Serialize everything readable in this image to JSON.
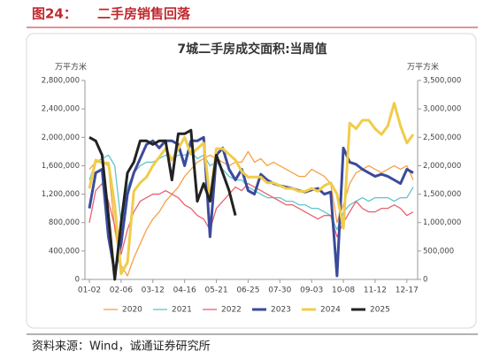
{
  "header": {
    "figure": "图24：",
    "title": "二手房销售回落"
  },
  "footer": "资料来源：Wind，诚通证券研究所",
  "chart_data": {
    "type": "line",
    "title": "7城二手房成交面积:当周值",
    "ylabel": "万平方米",
    "y2label": "万平方米",
    "categories": [
      "01-02",
      null,
      null,
      null,
      null,
      "02-06",
      null,
      null,
      null,
      null,
      "03-12",
      null,
      null,
      null,
      null,
      "04-16",
      null,
      null,
      null,
      null,
      "05-21",
      null,
      null,
      null,
      null,
      "06-25",
      null,
      null,
      null,
      null,
      "07-30",
      null,
      null,
      null,
      null,
      "09-03",
      null,
      null,
      null,
      null,
      "10-08",
      null,
      null,
      null,
      null,
      "11-12",
      null,
      null,
      null,
      null,
      "12-17",
      null
    ],
    "ylim": [
      0,
      2800000
    ],
    "yticks": [
      0,
      {
        "value": 400000,
        "label": "400,000"
      },
      {
        "value": 800000,
        "label": "800,000"
      },
      {
        "value": 1200000,
        "label": "1,200,000"
      },
      {
        "value": 1600000,
        "label": "1,600,000"
      },
      {
        "value": 2000000,
        "label": "2,000,000"
      },
      {
        "value": 2400000,
        "label": "2,400,000"
      },
      {
        "value": 2800000,
        "label": "2,800,000"
      }
    ],
    "y2lim": [
      0,
      3500000
    ],
    "y2ticks": [
      0,
      {
        "value": 500000,
        "label": "500,000"
      },
      {
        "value": 1000000,
        "label": "1,000,000"
      },
      {
        "value": 1500000,
        "label": "1,500,000"
      },
      {
        "value": 2000000,
        "label": "2,000,000"
      },
      {
        "value": 2500000,
        "label": "2,500,000"
      },
      {
        "value": 3000000,
        "label": "3,000,000"
      },
      {
        "value": 3500000,
        "label": "3,500,000"
      }
    ],
    "legend": "bottom",
    "series": [
      {
        "name": "2020",
        "color": "#f4a04a",
        "width": 1.3,
        "values": [
          1550000,
          1650000,
          1650000,
          1600000,
          700000,
          200000,
          50000,
          300000,
          500000,
          700000,
          850000,
          950000,
          1100000,
          1200000,
          1300000,
          1450000,
          1550000,
          1650000,
          1700000,
          1750000,
          1700000,
          1650000,
          1600000,
          1650000,
          1650000,
          1800000,
          1650000,
          1700000,
          1600000,
          1650000,
          1600000,
          1550000,
          1500000,
          1450000,
          1450000,
          1550000,
          1500000,
          1450000,
          1350000,
          800000,
          1050000,
          1350000,
          1500000,
          1550000,
          1600000,
          1550000,
          1500000,
          1550000,
          1600000,
          1550000,
          1600000,
          1400000
        ]
      },
      {
        "name": "2021",
        "color": "#5cc6cc",
        "width": 1.3,
        "values": [
          1400000,
          1650000,
          1700000,
          1750000,
          1600000,
          800000,
          1300000,
          1500000,
          1600000,
          1650000,
          1650000,
          1700000,
          1750000,
          1700000,
          1750000,
          1750000,
          1800000,
          1700000,
          1750000,
          1600000,
          1650000,
          1550000,
          1450000,
          1400000,
          1400000,
          1300000,
          1250000,
          1200000,
          1150000,
          1150000,
          1150000,
          1100000,
          1100000,
          1050000,
          1050000,
          1000000,
          1000000,
          950000,
          900000,
          700000,
          950000,
          1050000,
          1100000,
          1150000,
          1100000,
          1150000,
          1150000,
          1150000,
          1100000,
          1150000,
          1150000,
          1300000
        ]
      },
      {
        "name": "2022",
        "color": "#e8626e",
        "width": 1.3,
        "values": [
          800000,
          1250000,
          1350000,
          1100000,
          750000,
          350000,
          700000,
          950000,
          1100000,
          1150000,
          1200000,
          1200000,
          1250000,
          1200000,
          1150000,
          1050000,
          1000000,
          900000,
          850000,
          700000,
          1000000,
          1100000,
          1200000,
          1300000,
          1250000,
          1350000,
          1300000,
          1250000,
          1200000,
          1150000,
          1100000,
          1050000,
          1050000,
          1000000,
          950000,
          900000,
          850000,
          900000,
          900000,
          600000,
          800000,
          950000,
          1100000,
          1000000,
          950000,
          950000,
          1000000,
          1000000,
          1050000,
          1000000,
          900000,
          950000
        ]
      },
      {
        "name": "2023",
        "color": "#3b4a9a",
        "width": 3,
        "values": [
          1000000,
          1500000,
          1550000,
          600000,
          100000,
          500000,
          1200000,
          1500000,
          1700000,
          1900000,
          1950000,
          1850000,
          1950000,
          1950000,
          1900000,
          1600000,
          1950000,
          1950000,
          2000000,
          600000,
          1750000,
          1850000,
          1550000,
          1400000,
          1550000,
          1250000,
          1200000,
          1480000,
          1400000,
          1350000,
          1320000,
          1300000,
          1280000,
          1250000,
          1230000,
          1260000,
          1280000,
          1200000,
          1230000,
          50000,
          1850000,
          1650000,
          1620000,
          1550000,
          1500000,
          1450000,
          1480000,
          1450000,
          1400000,
          1350000,
          1550000,
          1500000
        ]
      },
      {
        "name": "2024",
        "color": "#f0cc4a",
        "width": 3,
        "axis": "y2",
        "values": [
          1600000,
          2100000,
          2050000,
          2050000,
          1300000,
          100000,
          300000,
          1550000,
          1700000,
          1800000,
          2000000,
          2150000,
          2300000,
          2100000,
          2300000,
          2500000,
          2200000,
          2300000,
          2400000,
          1400000,
          2300000,
          2300000,
          2200000,
          2100000,
          1900000,
          1800000,
          1800000,
          1800000,
          1700000,
          1700000,
          1650000,
          1600000,
          1600000,
          1550000,
          1550000,
          1600000,
          1550000,
          1650000,
          1700000,
          1500000,
          900000,
          2750000,
          2650000,
          2800000,
          2800000,
          2650000,
          2550000,
          2700000,
          3100000,
          2700000,
          2400000,
          2550000
        ]
      },
      {
        "name": "2025",
        "color": "#222222",
        "width": 3,
        "values": [
          2000000,
          1950000,
          1750000,
          900000,
          0,
          800000,
          1500000,
          1650000,
          1950000,
          1950000,
          1900000,
          1950000,
          1950000,
          1400000,
          2050000,
          2050000,
          2100000,
          1100000,
          1350000,
          1100000,
          1750000,
          1500000,
          1250000,
          900000,
          null,
          null,
          null,
          null,
          null,
          null,
          null,
          null,
          null,
          null,
          null,
          null,
          null,
          null,
          null,
          null,
          null,
          null,
          null,
          null,
          null,
          null,
          null,
          null,
          null,
          null,
          null,
          null
        ]
      }
    ]
  }
}
